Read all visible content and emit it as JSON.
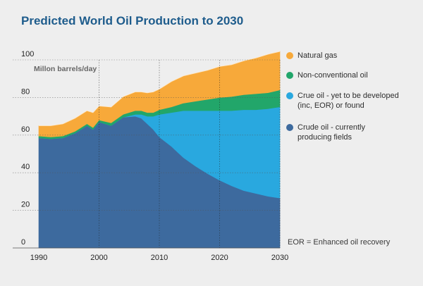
{
  "chart_data": {
    "type": "area",
    "stacked": true,
    "title": "Predicted World Oil Production to 2030",
    "ylabel": "Millon barrels/day",
    "xlabel": "",
    "xlim": [
      1990,
      2030
    ],
    "ylim": [
      0,
      100
    ],
    "x_ticks": [
      1990,
      2000,
      2010,
      2020,
      2030
    ],
    "y_ticks": [
      0,
      20,
      40,
      60,
      80,
      100
    ],
    "grid": "dotted horizontal and vertical",
    "x": [
      1990,
      1992,
      1994,
      1996,
      1998,
      1999,
      2000,
      2002,
      2004,
      2006,
      2007,
      2008,
      2009,
      2010,
      2012,
      2014,
      2016,
      2018,
      2020,
      2022,
      2024,
      2026,
      2028,
      2030
    ],
    "series": [
      {
        "name": "Crude oil - currently producing fields",
        "color": "#3d6a9e",
        "values": [
          58.5,
          58,
          58.5,
          61,
          65,
          63,
          67,
          65,
          69.5,
          70,
          69,
          66,
          63,
          59,
          54,
          48,
          43.5,
          39.5,
          36,
          33,
          30.5,
          29,
          27.5,
          26.5
        ]
      },
      {
        "name": "Crue oil - yet to be developed (inc, EOR) or found",
        "color": "#29a8df",
        "values": [
          0,
          0,
          0,
          0,
          0,
          0,
          0,
          0,
          0,
          1,
          2,
          4,
          7,
          12,
          18,
          25,
          29.5,
          33.5,
          37,
          40,
          43,
          44.5,
          46.5,
          48.5
        ]
      },
      {
        "name": "Non-conventional oil",
        "color": "#22a66a",
        "values": [
          1,
          1,
          1,
          1,
          1,
          1,
          1,
          1.5,
          1.5,
          2,
          2,
          2,
          2,
          2.5,
          3,
          4,
          5,
          6,
          7,
          7.5,
          8,
          8.5,
          8.5,
          9
        ]
      },
      {
        "name": "Natural gas",
        "color": "#f7a93a",
        "values": [
          5.5,
          6,
          6.5,
          7,
          7,
          8,
          7.5,
          8.5,
          9.5,
          10,
          10,
          10.5,
          11,
          11,
          13.5,
          14.5,
          15,
          15.5,
          16.5,
          17,
          18,
          19,
          20.5,
          20.5
        ]
      }
    ],
    "legend_placement": "right",
    "note": "EOR =  Enhanced oil recovery"
  }
}
